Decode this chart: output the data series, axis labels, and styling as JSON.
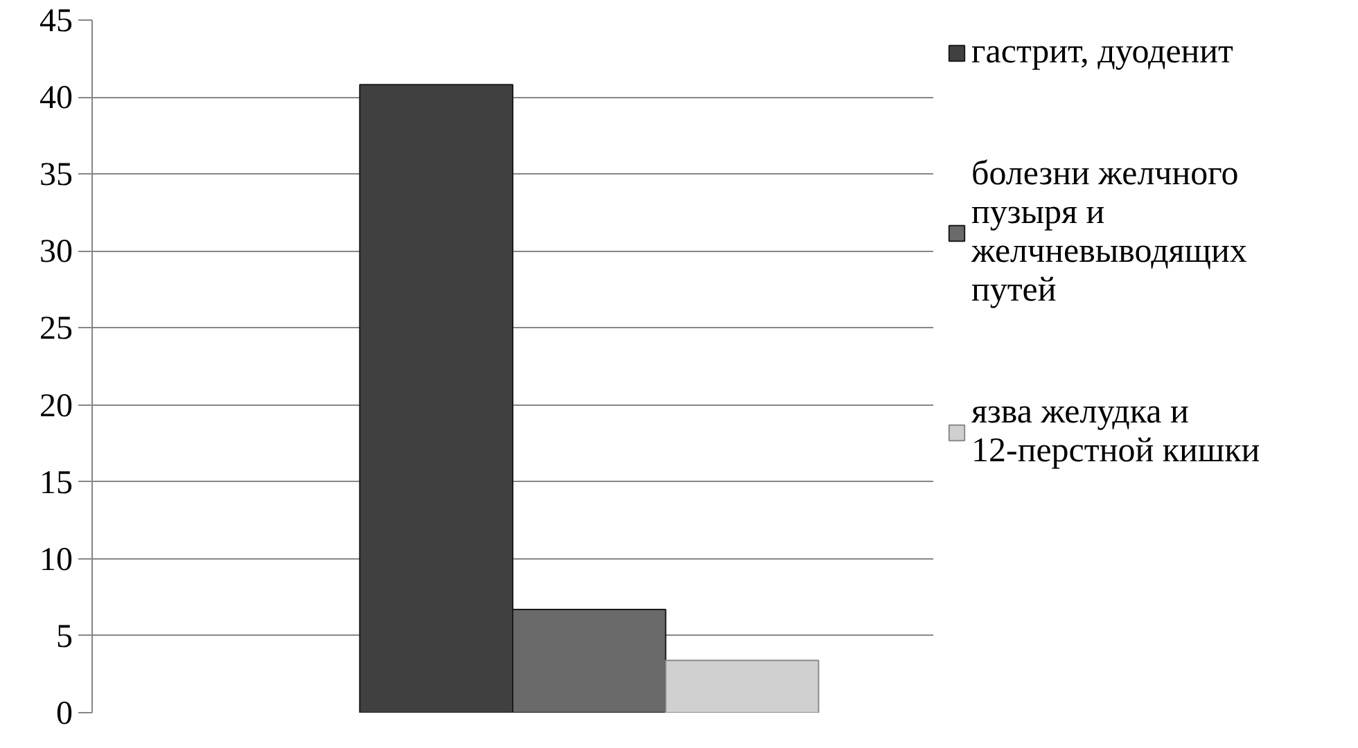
{
  "chart_data": {
    "type": "bar",
    "categories": [
      null
    ],
    "series": [
      {
        "name": "гастрит, дуоденит",
        "color": "#404040",
        "values": [
          40.8
        ]
      },
      {
        "name": "болезни желчного пузыря и желчневыводящих путей",
        "color": "#6a6a6a",
        "values": [
          6.7
        ]
      },
      {
        "name": "язва желудка и 12-перстной кишки",
        "color": "#d0d0d0",
        "values": [
          3.4
        ]
      }
    ],
    "ylim": [
      0,
      45
    ],
    "yticks": [
      0,
      5,
      10,
      15,
      20,
      25,
      30,
      35,
      40,
      45
    ],
    "grid": "y",
    "legend": "right"
  }
}
